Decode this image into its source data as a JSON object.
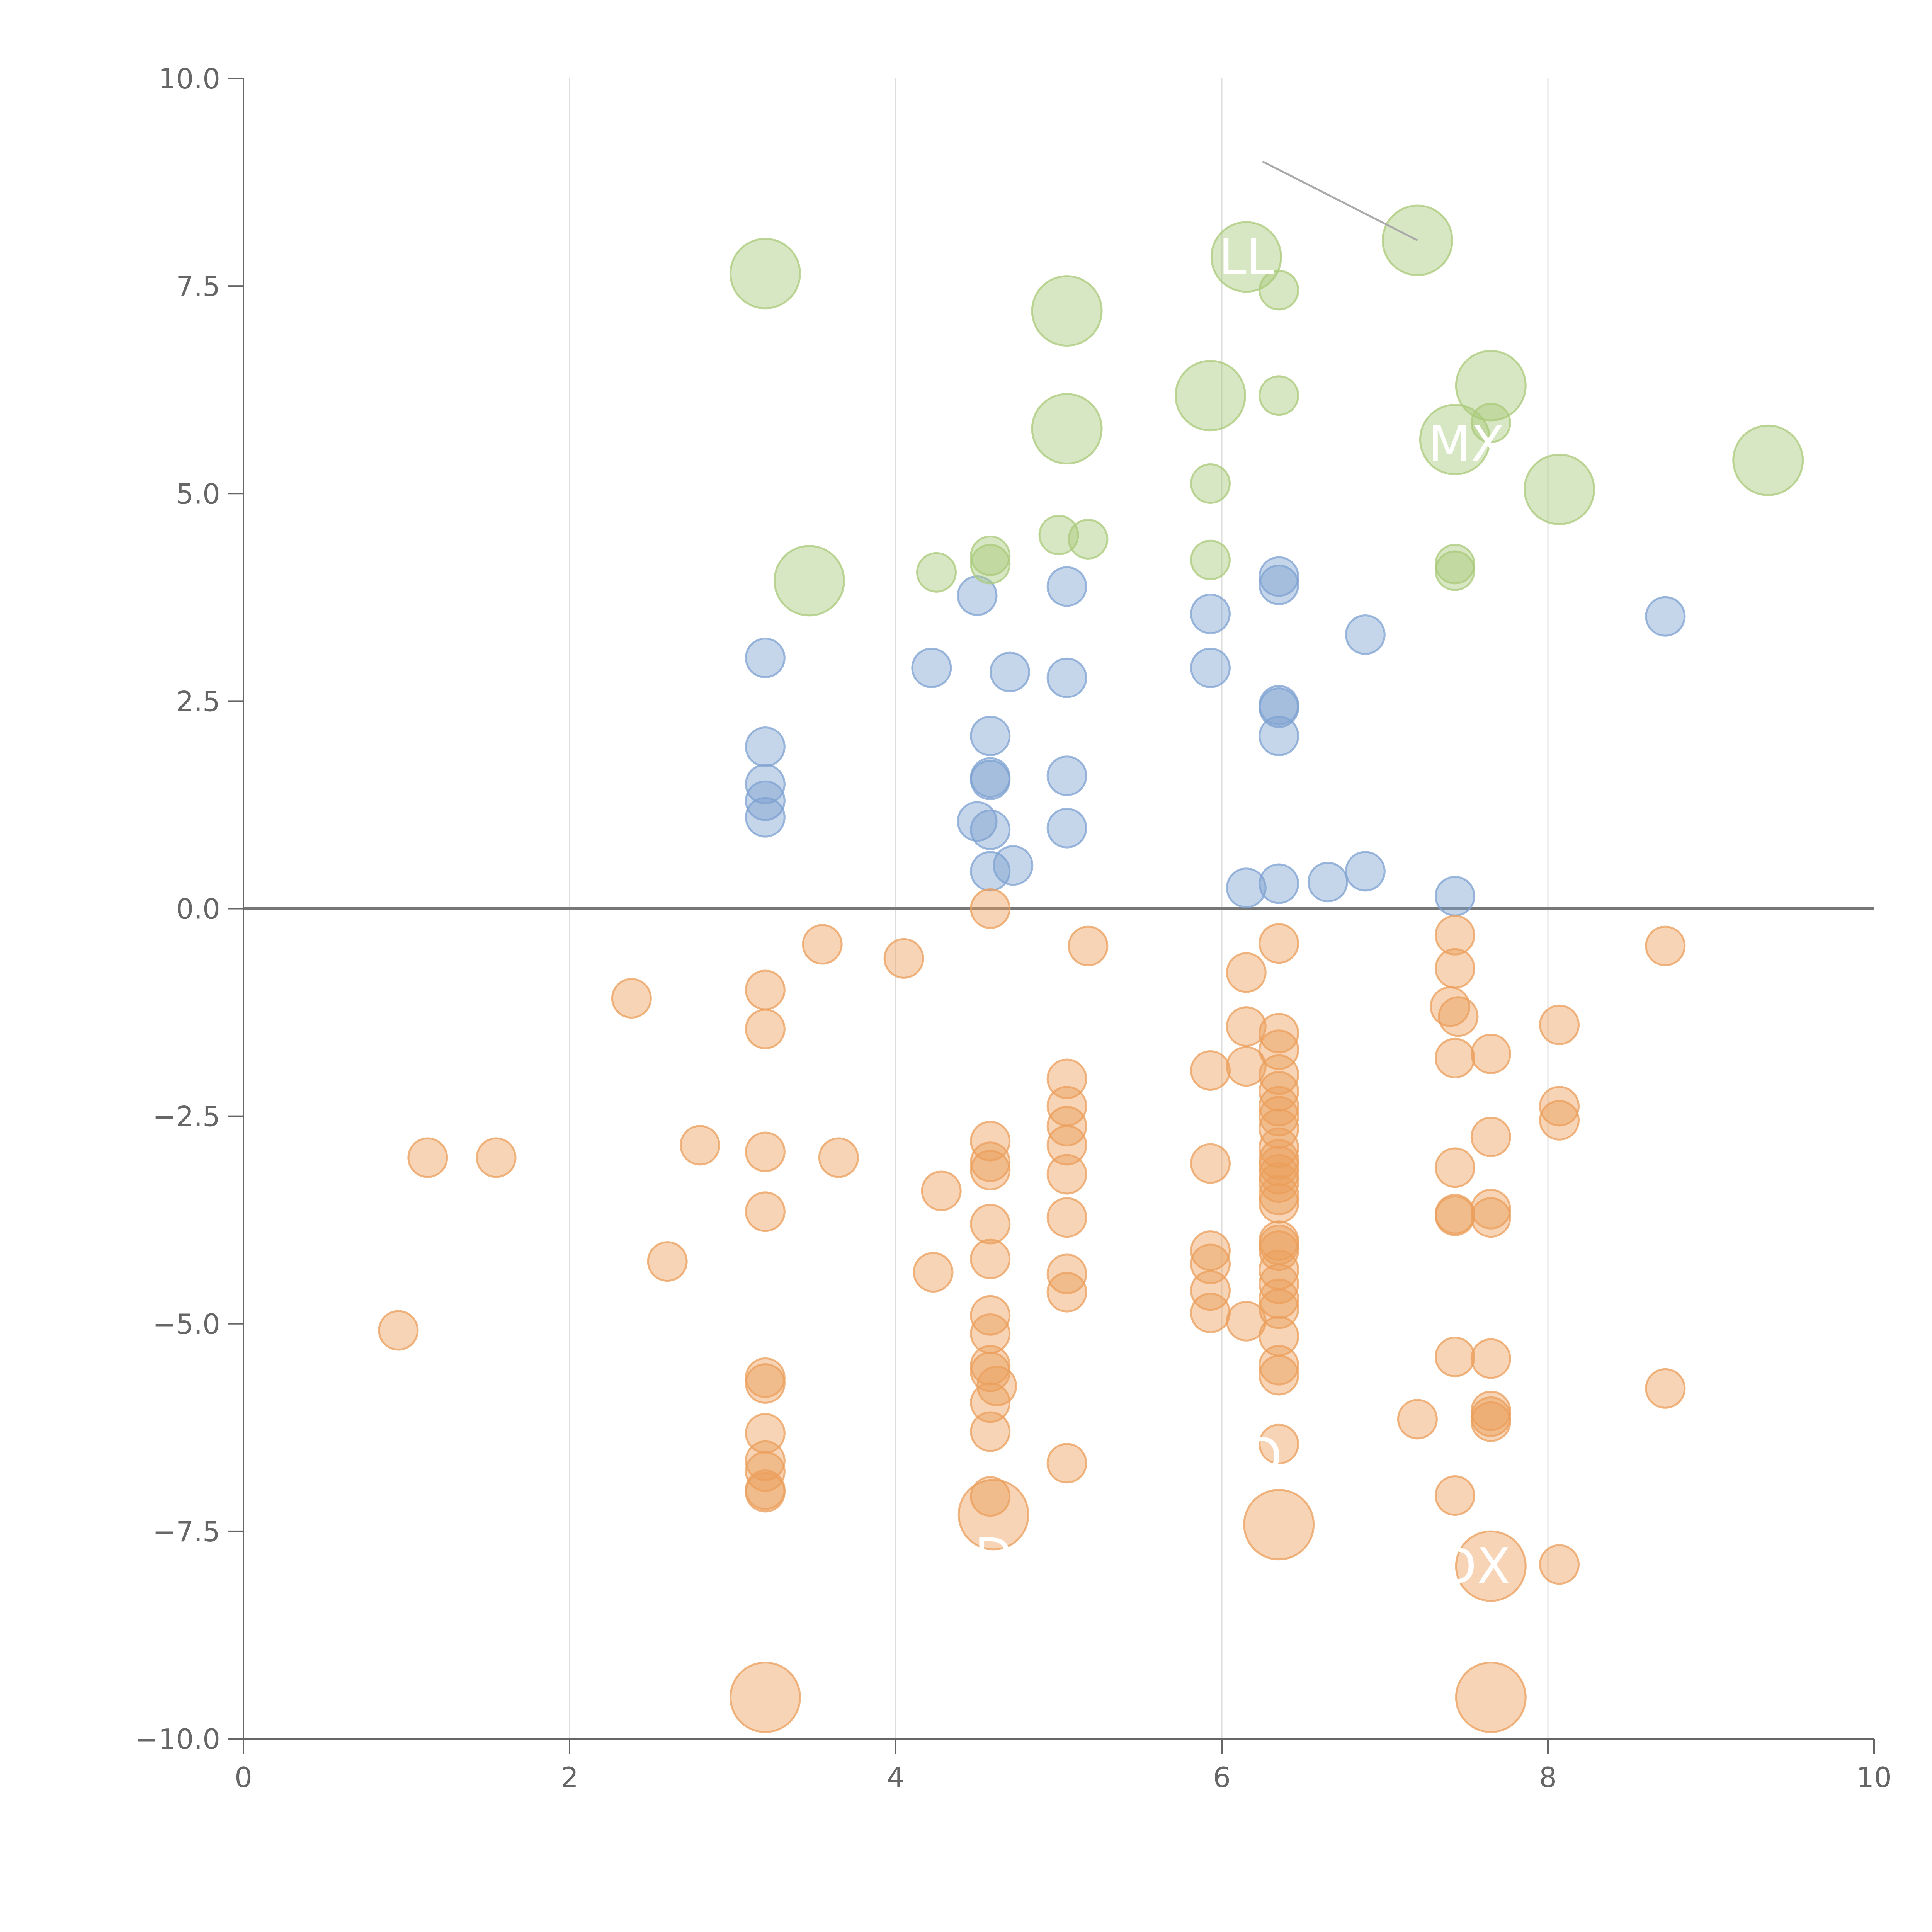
{
  "chart_data": {
    "type": "scatter",
    "title": "",
    "xlabel": "",
    "ylabel": "",
    "xlim": [
      0,
      10
    ],
    "ylim": [
      -10,
      10
    ],
    "x_ticks": [
      0,
      2,
      4,
      6,
      8,
      10
    ],
    "x_tick_labels": [
      "0",
      "2",
      "4",
      "6",
      "8",
      "10"
    ],
    "y_ticks": [
      -10,
      -7.5,
      -5,
      -2.5,
      0,
      2.5,
      5,
      7.5,
      10
    ],
    "y_tick_labels": [
      "−10.0",
      "−7.5",
      "−5.0",
      "−2.5",
      "0.0",
      "2.5",
      "5.0",
      "7.5",
      "10.0"
    ],
    "grid": {
      "vertical": true,
      "horizontal": false
    },
    "zero_line": true,
    "colors": {
      "blue": "#7ea1d1",
      "orange": "#eb9f5c",
      "green": "#a9c97a",
      "axis": "#666666",
      "grid": "#dddddd",
      "zero_line": "#777777"
    },
    "series": [
      {
        "color": "blue",
        "points": [
          [
            3.2,
            3.02
          ],
          [
            3.2,
            1.95
          ],
          [
            3.2,
            1.5
          ],
          [
            3.2,
            1.3
          ],
          [
            3.2,
            1.1
          ],
          [
            4.22,
            2.9
          ],
          [
            4.5,
            3.77
          ],
          [
            4.5,
            1.05
          ],
          [
            4.58,
            2.08
          ],
          [
            4.58,
            1.58
          ],
          [
            4.58,
            1.55
          ],
          [
            4.58,
            0.95
          ],
          [
            4.58,
            0.45
          ],
          [
            4.7,
            2.85
          ],
          [
            4.72,
            0.52
          ],
          [
            5.05,
            3.88
          ],
          [
            5.05,
            2.78
          ],
          [
            5.05,
            1.6
          ],
          [
            5.05,
            0.97
          ],
          [
            5.93,
            3.55
          ],
          [
            5.93,
            2.9
          ],
          [
            6.15,
            0.25
          ],
          [
            6.35,
            4.0
          ],
          [
            6.35,
            3.9
          ],
          [
            6.35,
            2.45
          ],
          [
            6.35,
            2.42
          ],
          [
            6.35,
            2.08
          ],
          [
            6.35,
            0.3
          ],
          [
            6.65,
            0.32
          ],
          [
            6.88,
            3.3
          ],
          [
            6.88,
            0.45
          ],
          [
            7.43,
            0.15
          ],
          [
            8.72,
            3.52
          ]
        ]
      },
      {
        "color": "green",
        "points": [
          [
            3.2,
            7.65,
            "L"
          ],
          [
            3.47,
            3.95,
            "L"
          ],
          [
            4.25,
            4.05
          ],
          [
            4.58,
            4.25
          ],
          [
            4.58,
            4.15
          ],
          [
            5.05,
            7.2,
            "L"
          ],
          [
            5.05,
            5.78,
            "L"
          ],
          [
            5.0,
            4.5
          ],
          [
            5.18,
            4.45
          ],
          [
            5.93,
            6.18,
            "L"
          ],
          [
            5.93,
            5.12
          ],
          [
            5.93,
            4.2
          ],
          [
            6.15,
            7.85,
            "L"
          ],
          [
            6.35,
            7.45
          ],
          [
            6.35,
            6.18
          ],
          [
            7.2,
            8.05,
            "L"
          ],
          [
            7.43,
            5.65,
            "L"
          ],
          [
            7.43,
            4.15
          ],
          [
            7.43,
            4.07
          ],
          [
            7.65,
            6.3,
            "L"
          ],
          [
            7.65,
            5.85
          ],
          [
            8.07,
            5.05,
            "L"
          ],
          [
            9.35,
            5.4,
            "L"
          ]
        ]
      },
      {
        "color": "orange",
        "points": [
          [
            0.95,
            -5.08
          ],
          [
            1.13,
            -3.0
          ],
          [
            1.55,
            -3.0
          ],
          [
            2.38,
            -1.08
          ],
          [
            2.6,
            -4.25
          ],
          [
            2.8,
            -2.85
          ],
          [
            3.2,
            -0.98
          ],
          [
            3.2,
            -1.45
          ],
          [
            3.2,
            -2.93
          ],
          [
            3.2,
            -3.65
          ],
          [
            3.2,
            -5.65
          ],
          [
            3.2,
            -5.72
          ],
          [
            3.2,
            -6.32
          ],
          [
            3.2,
            -6.65
          ],
          [
            3.2,
            -6.78
          ],
          [
            3.2,
            -7.0
          ],
          [
            3.2,
            -7.03
          ],
          [
            3.2,
            -9.5,
            "L"
          ],
          [
            3.55,
            -0.43
          ],
          [
            3.65,
            -3.0
          ],
          [
            4.05,
            -0.6
          ],
          [
            4.23,
            -4.38
          ],
          [
            4.28,
            -3.4
          ],
          [
            4.58,
            0.0
          ],
          [
            4.58,
            -2.8
          ],
          [
            4.58,
            -3.05
          ],
          [
            4.58,
            -3.15
          ],
          [
            4.58,
            -3.8
          ],
          [
            4.58,
            -4.22
          ],
          [
            4.58,
            -4.9
          ],
          [
            4.58,
            -5.12
          ],
          [
            4.58,
            -5.5
          ],
          [
            4.58,
            -5.58
          ],
          [
            4.58,
            -5.95
          ],
          [
            4.62,
            -5.75
          ],
          [
            4.58,
            -6.3
          ],
          [
            4.58,
            -7.08
          ],
          [
            4.6,
            -7.3,
            "L"
          ],
          [
            5.05,
            -2.05
          ],
          [
            5.05,
            -2.38
          ],
          [
            5.05,
            -2.62
          ],
          [
            5.05,
            -2.85
          ],
          [
            5.05,
            -3.2
          ],
          [
            5.05,
            -3.72
          ],
          [
            5.05,
            -4.4
          ],
          [
            5.05,
            -4.62
          ],
          [
            5.05,
            -6.68
          ],
          [
            5.18,
            -0.45
          ],
          [
            5.93,
            -1.95
          ],
          [
            5.93,
            -3.07
          ],
          [
            5.93,
            -4.12
          ],
          [
            5.93,
            -4.28
          ],
          [
            5.93,
            -4.6
          ],
          [
            5.93,
            -4.87
          ],
          [
            6.15,
            -0.77
          ],
          [
            6.15,
            -1.42
          ],
          [
            6.15,
            -1.9
          ],
          [
            6.15,
            -4.97
          ],
          [
            6.35,
            -0.42
          ],
          [
            6.35,
            -1.5
          ],
          [
            6.35,
            -1.7
          ],
          [
            6.35,
            -2.0
          ],
          [
            6.35,
            -2.2
          ],
          [
            6.35,
            -2.38
          ],
          [
            6.35,
            -2.5
          ],
          [
            6.35,
            -2.65
          ],
          [
            6.35,
            -2.88
          ],
          [
            6.35,
            -3.02
          ],
          [
            6.35,
            -3.1
          ],
          [
            6.35,
            -3.2
          ],
          [
            6.35,
            -3.3
          ],
          [
            6.35,
            -3.45
          ],
          [
            6.35,
            -3.55
          ],
          [
            6.35,
            -4.0
          ],
          [
            6.35,
            -4.05
          ],
          [
            6.35,
            -4.12
          ],
          [
            6.35,
            -4.35
          ],
          [
            6.35,
            -4.52
          ],
          [
            6.35,
            -4.7
          ],
          [
            6.35,
            -4.82
          ],
          [
            6.35,
            -5.15
          ],
          [
            6.35,
            -5.5
          ],
          [
            6.35,
            -5.62
          ],
          [
            6.35,
            -6.45
          ],
          [
            6.35,
            -7.42,
            "L"
          ],
          [
            7.2,
            -6.15
          ],
          [
            7.43,
            -0.32
          ],
          [
            7.43,
            -0.72
          ],
          [
            7.4,
            -1.18
          ],
          [
            7.45,
            -1.3
          ],
          [
            7.43,
            -1.8
          ],
          [
            7.43,
            -3.12
          ],
          [
            7.43,
            -3.68
          ],
          [
            7.43,
            -3.7
          ],
          [
            7.43,
            -5.4
          ],
          [
            7.43,
            -7.07
          ],
          [
            7.65,
            -1.75
          ],
          [
            7.65,
            -2.75
          ],
          [
            7.65,
            -3.62
          ],
          [
            7.65,
            -3.72
          ],
          [
            7.65,
            -5.42
          ],
          [
            7.65,
            -6.05
          ],
          [
            7.65,
            -6.12
          ],
          [
            7.65,
            -6.18
          ],
          [
            7.65,
            -7.92,
            "L"
          ],
          [
            7.65,
            -9.5,
            "L"
          ],
          [
            8.07,
            -1.4
          ],
          [
            8.07,
            -2.38
          ],
          [
            8.07,
            -2.55
          ],
          [
            8.07,
            -7.9
          ],
          [
            8.72,
            -0.45
          ],
          [
            8.72,
            -5.78
          ]
        ]
      }
    ],
    "annotations": [
      {
        "text": "LL",
        "x": 6.15,
        "y": 7.85
      },
      {
        "text": "MX",
        "x": 7.5,
        "y": 5.6
      },
      {
        "text": "DX",
        "x": 7.55,
        "y": -7.92
      },
      {
        "text": "O",
        "x": 6.25,
        "y": -6.6
      },
      {
        "text": "D",
        "x": 4.6,
        "y": -7.8
      }
    ],
    "leader_line": {
      "from": [
        6.25,
        9.0
      ],
      "to": [
        7.2,
        8.05
      ]
    }
  }
}
